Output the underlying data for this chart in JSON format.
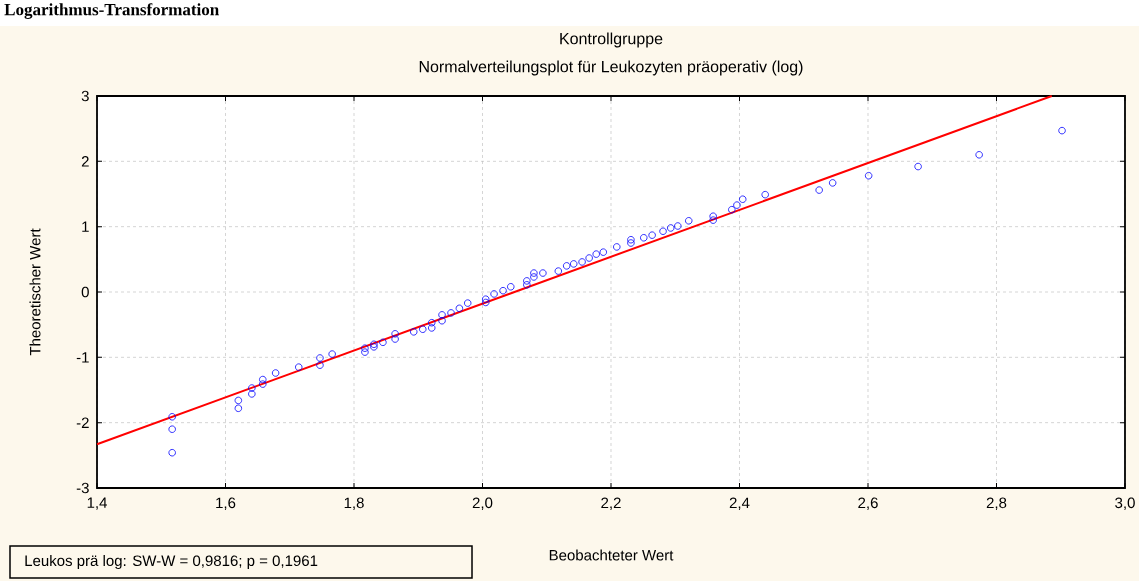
{
  "chart_data": {
    "type": "scatter",
    "title": "Kontrollgruppe",
    "subtitle": "Normalverteilungsplot für Leukozyten präoperativ (log)",
    "xlabel": "Beobachteter Wert",
    "ylabel": "Theoretischer Wert",
    "annotations": [
      "Logarithmus-Transformation",
      "Leukos prä log:  SW-W = 0,9816; p = 0,1961"
    ],
    "xlim": [
      1.4,
      3.0
    ],
    "ylim": [
      -3,
      3
    ],
    "xticks": [
      {
        "value": 1.4,
        "label": "1,4"
      },
      {
        "value": 1.6,
        "label": "1,6"
      },
      {
        "value": 1.8,
        "label": "1,8"
      },
      {
        "value": 2.0,
        "label": "2,0"
      },
      {
        "value": 2.2,
        "label": "2,2"
      },
      {
        "value": 2.4,
        "label": "2,4"
      },
      {
        "value": 2.6,
        "label": "2,6"
      },
      {
        "value": 2.8,
        "label": "2,8"
      },
      {
        "value": 3.0,
        "label": "3,0"
      }
    ],
    "yticks": [
      -3,
      -2,
      -1,
      0,
      1,
      2,
      3
    ],
    "grid": true,
    "marker": "circle",
    "series": [
      {
        "color": "#0000ff",
        "x": [
          1.517,
          1.517,
          1.517,
          1.62,
          1.62,
          1.641,
          1.641,
          1.658,
          1.658,
          1.678,
          1.714,
          1.747,
          1.747,
          1.766,
          1.817,
          1.817,
          1.831,
          1.831,
          1.845,
          1.864,
          1.864,
          1.893,
          1.907,
          1.921,
          1.921,
          1.937,
          1.937,
          1.951,
          1.964,
          1.977,
          2.005,
          2.005,
          2.018,
          2.032,
          2.044,
          2.069,
          2.069,
          2.08,
          2.08,
          2.094,
          2.118,
          2.131,
          2.142,
          2.155,
          2.166,
          2.177,
          2.188,
          2.209,
          2.231,
          2.231,
          2.251,
          2.264,
          2.281,
          2.293,
          2.304,
          2.321,
          2.359,
          2.359,
          2.388,
          2.396,
          2.405,
          2.44,
          2.524,
          2.545,
          2.601,
          2.678,
          2.773,
          2.902
        ],
        "values": [
          -1.91,
          -2.1,
          -2.46,
          -1.66,
          -1.78,
          -1.47,
          -1.56,
          -1.34,
          -1.41,
          -1.24,
          -1.15,
          -1.01,
          -1.12,
          -0.95,
          -0.86,
          -0.92,
          -0.8,
          -0.84,
          -0.77,
          -0.64,
          -0.72,
          -0.61,
          -0.57,
          -0.47,
          -0.55,
          -0.35,
          -0.44,
          -0.32,
          -0.25,
          -0.17,
          -0.11,
          -0.16,
          -0.03,
          0.02,
          0.08,
          0.17,
          0.11,
          0.29,
          0.23,
          0.29,
          0.32,
          0.4,
          0.43,
          0.46,
          0.52,
          0.58,
          0.61,
          0.69,
          0.75,
          0.8,
          0.83,
          0.87,
          0.93,
          0.98,
          1.01,
          1.09,
          1.16,
          1.1,
          1.26,
          1.33,
          1.42,
          1.49,
          1.56,
          1.67,
          1.78,
          1.92,
          2.1,
          2.47
        ]
      },
      {
        "type": "line",
        "marker": "none",
        "color": "#ff0000",
        "x": [
          1.4,
          2.886
        ],
        "values": [
          -2.33,
          3
        ]
      }
    ]
  }
}
